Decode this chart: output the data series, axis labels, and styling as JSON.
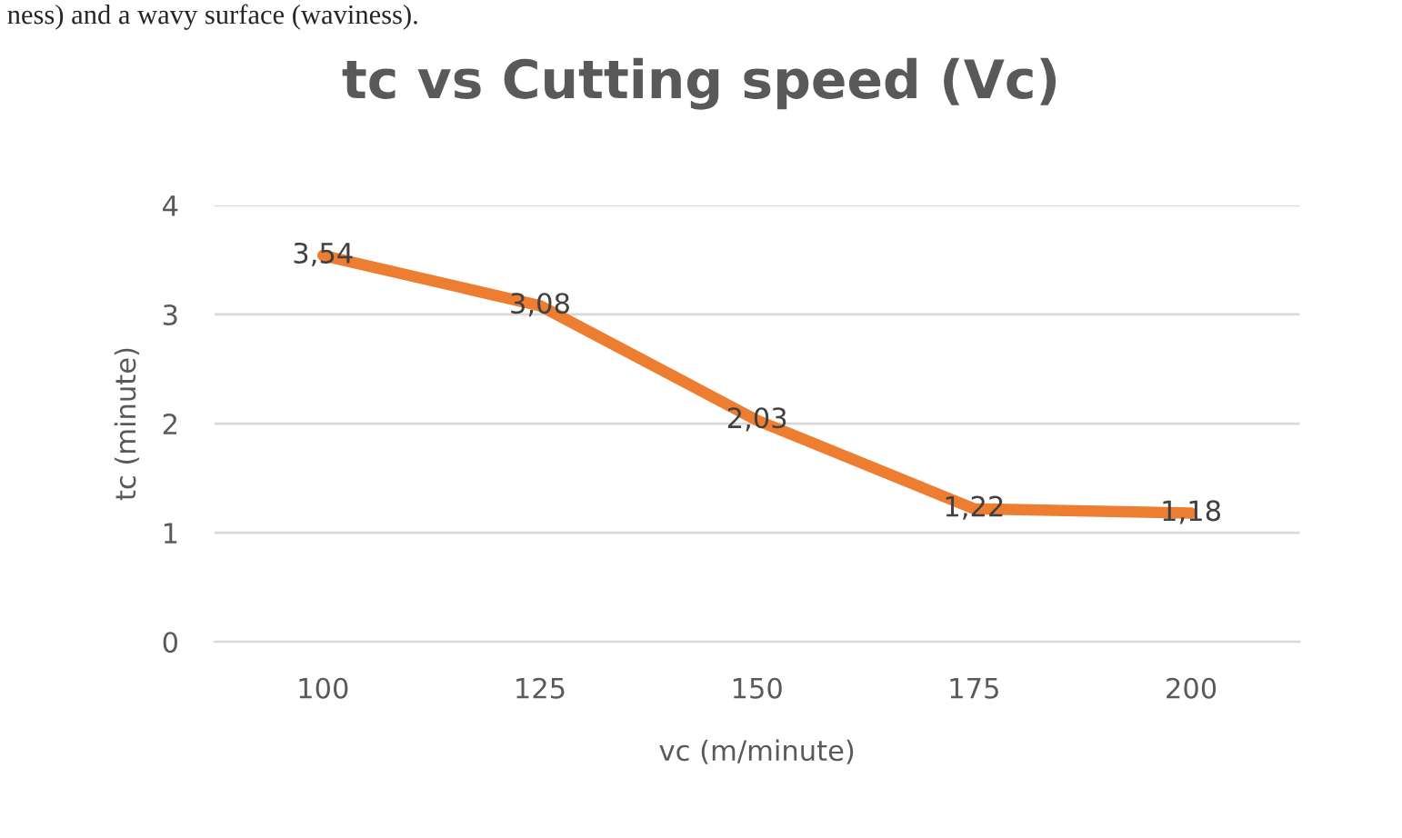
{
  "chart_data": {
    "type": "line",
    "title": "tc vs Cutting speed (Vc)",
    "xlabel": "vc (m/minute)",
    "ylabel": "tc (minute)",
    "categories": [
      "100",
      "125",
      "150",
      "175",
      "200"
    ],
    "series": [
      {
        "color": "#ed7d31",
        "values": [
          3.54,
          3.08,
          2.03,
          1.22,
          1.18
        ],
        "value_labels": [
          "3,54",
          "3,08",
          "2,03",
          "1,22",
          "1,18"
        ]
      }
    ],
    "ylim": [
      0,
      4
    ],
    "yticks": [
      0,
      1,
      2,
      3,
      4
    ],
    "grid": "y",
    "legend": false,
    "marker": "none",
    "line_style": "solid",
    "annotations": [
      "ness) and a wavy surface (waviness)."
    ]
  }
}
